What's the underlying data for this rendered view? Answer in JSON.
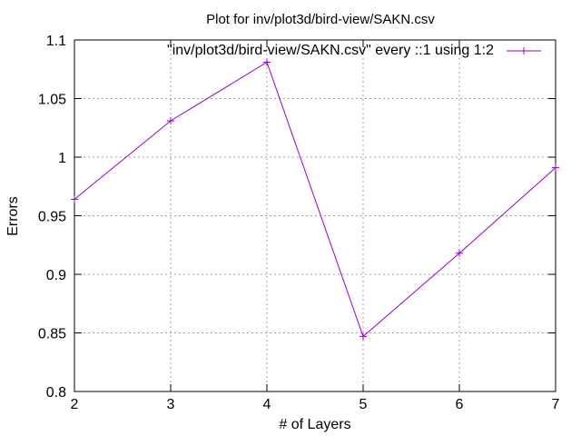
{
  "chart_data": {
    "type": "line",
    "title": "Plot for inv/plot3d/bird-view/SAKN.csv",
    "xlabel": "# of Layers",
    "ylabel": "Errors",
    "xlim": [
      2,
      7
    ],
    "ylim": [
      0.8,
      1.1
    ],
    "x_ticks": [
      "2",
      "3",
      "4",
      "5",
      "6",
      "7"
    ],
    "y_ticks": [
      "0.8",
      "0.85",
      "0.9",
      "0.95",
      "1",
      "1.05",
      "1.1"
    ],
    "grid": true,
    "legend_position": "top-right",
    "colors": {
      "series": "#9400d3",
      "grid": "#a0a0a0",
      "axis": "#000000"
    },
    "series": [
      {
        "name": "\"inv/plot3d/bird-view/SAKN.csv\" every ::1 using 1:2",
        "x": [
          2,
          3,
          4,
          5,
          6,
          7
        ],
        "y": [
          0.964,
          1.031,
          1.081,
          0.847,
          0.918,
          0.991
        ],
        "marker": "plus"
      }
    ]
  }
}
